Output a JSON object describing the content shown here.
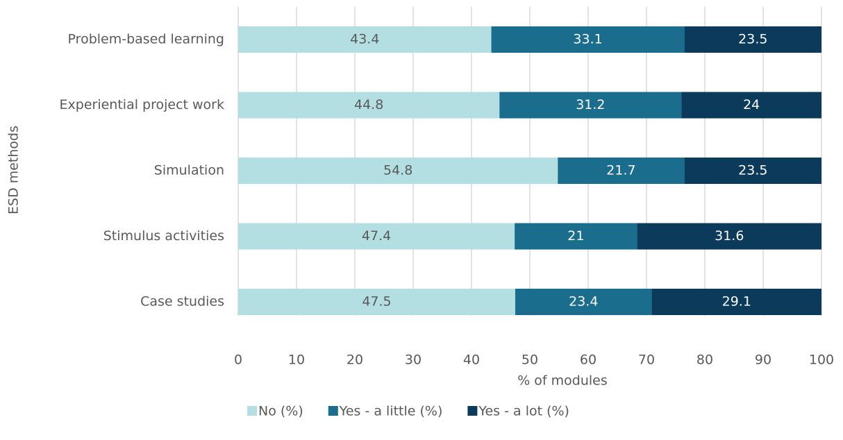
{
  "chart_data": {
    "type": "bar",
    "orientation": "horizontal",
    "stacked": true,
    "xlabel": "% of modules",
    "ylabel": "ESD methods",
    "categories": [
      "Problem-based learning",
      "Experiential project work",
      "Simulation",
      "Stimulus activities",
      "Case studies"
    ],
    "series": [
      {
        "name": "No (%)",
        "color": "#b3dfe3",
        "values": [
          43.4,
          44.8,
          54.8,
          47.4,
          47.5
        ]
      },
      {
        "name": "Yes - a little (%)",
        "color": "#1a6d8c",
        "values": [
          33.1,
          31.2,
          21.7,
          21,
          23.4
        ]
      },
      {
        "name": "Yes - a lot (%)",
        "color": "#0b3a5b",
        "values": [
          23.5,
          24,
          23.5,
          31.6,
          29.1
        ]
      }
    ],
    "xlim": [
      0,
      100
    ],
    "xticks": [
      0,
      10,
      20,
      30,
      40,
      50,
      60,
      70,
      80,
      90,
      100
    ],
    "grid": true,
    "data_labels": true,
    "legend": "bottom"
  }
}
